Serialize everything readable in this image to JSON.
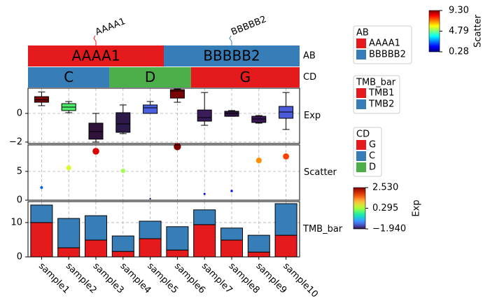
{
  "chart_data": [
    {
      "type": "annotation",
      "name": "AB",
      "values": [
        "AAAA1",
        "AAAA1",
        "AAAA1",
        "AAAA1",
        "AAAA1",
        "BBBBB2",
        "BBBBB2",
        "BBBBB2",
        "BBBBB2",
        "BBBBB2"
      ],
      "legend": [
        {
          "label": "AAAA1",
          "color": "#e41a1c"
        },
        {
          "label": "BBBBB2",
          "color": "#377eb8"
        }
      ],
      "text_color": "#f0e442",
      "top_labels": true
    },
    {
      "type": "annotation",
      "name": "CD",
      "values": [
        "C",
        "C",
        "C",
        "D",
        "D",
        "D",
        "G",
        "G",
        "G",
        "G"
      ],
      "legend": [
        {
          "label": "G",
          "color": "#e41a1c"
        },
        {
          "label": "C",
          "color": "#377eb8"
        },
        {
          "label": "D",
          "color": "#4daf4a"
        }
      ],
      "text_color": "#984ea3"
    },
    {
      "type": "box",
      "name": "Exp",
      "low": [
        0.54,
        0.05,
        -2.0,
        -1.41,
        0,
        0.78,
        -0.83,
        -0.2,
        -0.68,
        -1.12
      ],
      "q1": [
        0.78,
        0.2,
        -1.8,
        -1.32,
        0,
        1.07,
        -0.54,
        -0.2,
        -0.63,
        -0.34
      ],
      "median": [
        0.95,
        0.44,
        -1.27,
        -0.73,
        0.39,
        1.56,
        -0.29,
        0,
        -0.39,
        0.1
      ],
      "q3": [
        1.17,
        0.68,
        -0.68,
        0.05,
        0.59,
        1.66,
        0.24,
        0.15,
        -0.2,
        0.49
      ],
      "high": [
        1.5,
        0.83,
        0,
        0.59,
        0.83,
        1.7,
        1.46,
        0.2,
        -0.15,
        1.46
      ],
      "colors": [
        "#7a0403",
        "#4ef06b",
        "#30123b",
        "#2b1a4a",
        "#4a5ee0",
        "#7a0403",
        "#3b1c5a",
        "#2e1440",
        "#3a1856",
        "#4b5bd9"
      ],
      "ylim": [
        -2.1,
        1.76
      ],
      "yticks": [
        {
          "value": -2,
          "label": "−2"
        },
        0
      ],
      "grid": true,
      "clim": [
        -1.94,
        2.53
      ],
      "cticks": [
        {
          "value": 2.53,
          "label": "2.530"
        },
        0.295,
        {
          "value": -1.94,
          "label": "−1.940"
        }
      ]
    },
    {
      "type": "scatter",
      "name": "Scatter",
      "values": [
        2.2,
        5.6,
        8.5,
        5.1,
        0.28,
        9.3,
        1.1,
        1.6,
        6.9,
        7.6
      ],
      "ylim": [
        0,
        9.6
      ],
      "yticks": [
        0,
        5
      ],
      "grid": true,
      "colormap": "jet",
      "clim": [
        0.28,
        9.3
      ],
      "cticks": [
        {
          "value": 9.3,
          "label": "9.30"
        },
        4.79,
        0.28
      ]
    },
    {
      "type": "bar",
      "name": "TMB_bar",
      "stacked": true,
      "categories": [
        "sample1",
        "sample2",
        "sample3",
        "sample4",
        "sample5",
        "sample6",
        "sample7",
        "sample8",
        "sample9",
        "sample10"
      ],
      "series": [
        {
          "name": "TMB1",
          "color": "#e41a1c",
          "values": [
            10,
            2.65,
            4.9,
            1.6,
            5.3,
            2,
            9.4,
            4.9,
            1.4,
            6.3
          ]
        },
        {
          "name": "TMB2",
          "color": "#377eb8",
          "values": [
            5.1,
            8.55,
            7.1,
            4.5,
            5.1,
            6.8,
            4.3,
            3.5,
            4.9,
            9.2
          ]
        }
      ],
      "ylim": [
        0,
        16.1
      ],
      "yticks": [
        0,
        10
      ],
      "grid": true
    }
  ]
}
